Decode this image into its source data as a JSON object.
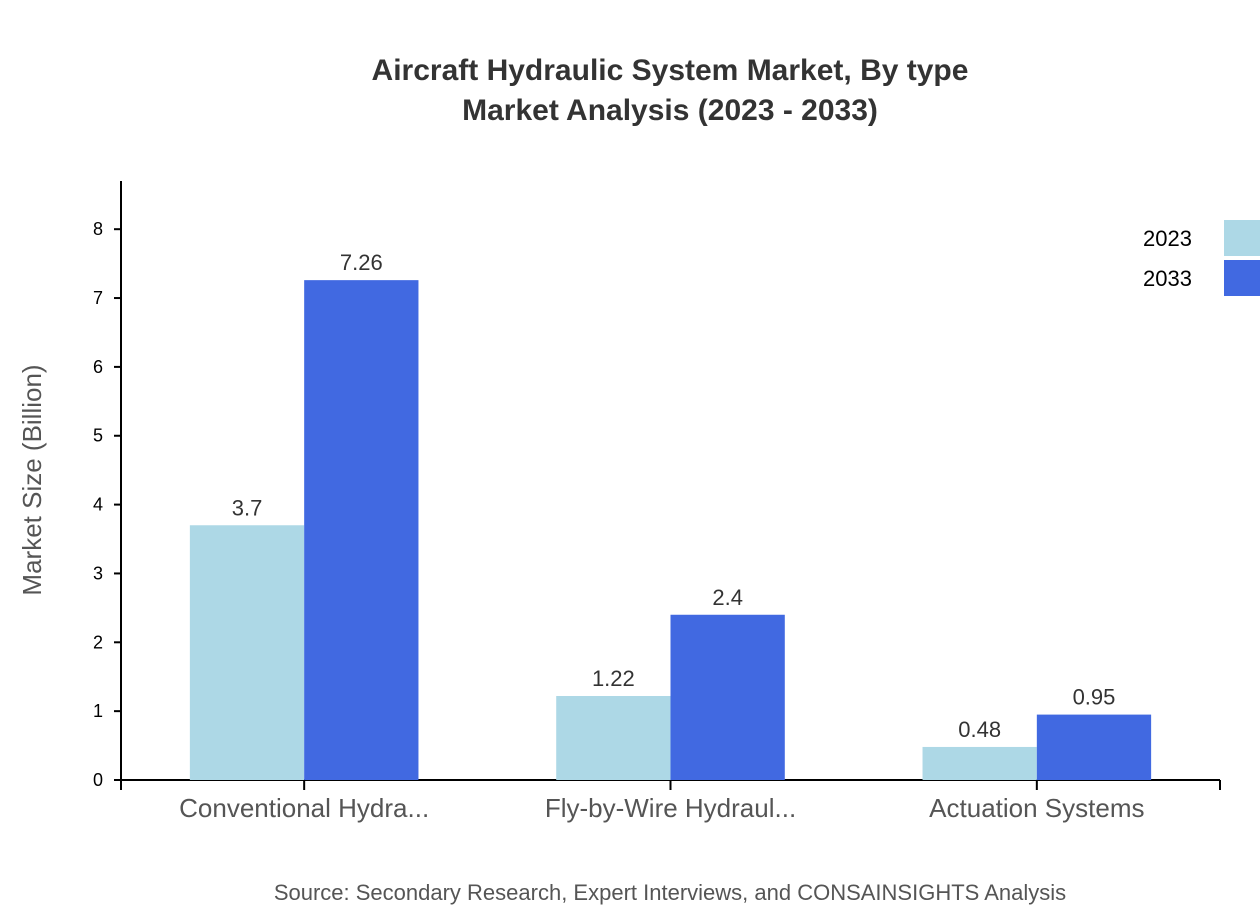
{
  "chart_data": {
    "type": "bar",
    "title": "Aircraft Hydraulic System Market, By type",
    "subtitle": "Market Analysis (2023 - 2033)",
    "ylabel": "Market Size (Billion)",
    "xlabel": "",
    "ylim": [
      0,
      8.7
    ],
    "yticks": [
      0,
      1,
      2,
      3,
      4,
      5,
      6,
      7,
      8
    ],
    "categories": [
      "Conventional Hydra...",
      "Fly-by-Wire Hydraul...",
      "Actuation Systems"
    ],
    "series": [
      {
        "name": "2023",
        "values": [
          3.7,
          1.22,
          0.48
        ],
        "color": "#add8e6"
      },
      {
        "name": "2033",
        "values": [
          7.26,
          2.4,
          0.95
        ],
        "color": "#4169e1"
      }
    ],
    "legend_position": "top-right",
    "grid": false,
    "source": "Source: Secondary Research, Expert Interviews, and CONSAINSIGHTS Analysis"
  }
}
